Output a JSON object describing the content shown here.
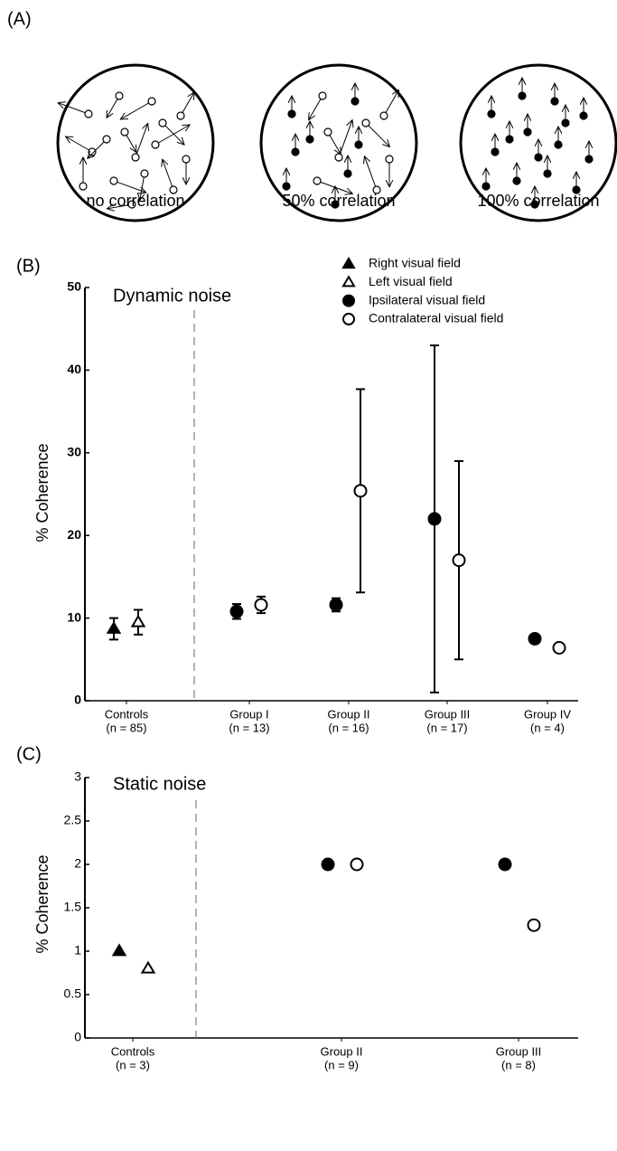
{
  "panel_a": {
    "label": "(A)",
    "captions": [
      "no correlation",
      "50% correlation",
      "100% correlation"
    ]
  },
  "chart_data": [
    {
      "type": "scatter",
      "panel_label": "(B)",
      "title": "Dynamic noise",
      "y_label": "% Coherence",
      "categories": [
        "Controls",
        "Group I",
        "Group II",
        "Group III",
        "Group IV"
      ],
      "category_notes": [
        "(n = 85)",
        "(n = 13)",
        "(n = 16)",
        "(n = 17)",
        "(n = 4)"
      ],
      "ylim": [
        0,
        50
      ],
      "yticks": [
        0,
        10,
        20,
        30,
        40,
        50
      ],
      "legend": "top-right",
      "series": [
        {
          "name": "Right visual field",
          "marker": "triangle",
          "filled": true,
          "color": "#000000",
          "values": [
            8.7,
            null,
            null,
            null,
            null
          ],
          "errors": [
            1.3,
            null,
            null,
            null,
            null
          ]
        },
        {
          "name": "Left visual field",
          "marker": "triangle",
          "filled": false,
          "color": "#000000",
          "values": [
            9.5,
            null,
            null,
            null,
            null
          ],
          "errors": [
            1.5,
            null,
            null,
            null,
            null
          ]
        },
        {
          "name": "Ipsilateral visual field",
          "marker": "circle",
          "filled": true,
          "color": "#000000",
          "values": [
            null,
            10.8,
            11.6,
            22,
            7.5
          ],
          "errors": [
            null,
            0.9,
            0.8,
            21,
            null
          ]
        },
        {
          "name": "Contralateral visual field",
          "marker": "circle",
          "filled": false,
          "color": "#000000",
          "values": [
            null,
            11.6,
            25.4,
            17,
            6.4
          ],
          "errors": [
            null,
            1,
            12.3,
            12,
            null
          ]
        }
      ]
    },
    {
      "type": "scatter",
      "panel_label": "(C)",
      "title": "Static noise",
      "y_label": "% Coherence",
      "categories": [
        "Controls",
        "Group II",
        "Group III"
      ],
      "category_notes": [
        "(n = 3)",
        "(n = 9)",
        "(n = 8)"
      ],
      "ylim": [
        0,
        3
      ],
      "yticks": [
        0,
        0.5,
        1,
        1.5,
        2,
        2.5,
        3
      ],
      "series": [
        {
          "marker": "triangle",
          "filled": true,
          "color": "#000000",
          "values": [
            1,
            null,
            null
          ]
        },
        {
          "marker": "triangle",
          "filled": false,
          "color": "#000000",
          "values": [
            0.8,
            null,
            null
          ]
        },
        {
          "marker": "circle",
          "filled": true,
          "color": "#000000",
          "values": [
            null,
            2,
            2
          ]
        },
        {
          "marker": "circle",
          "filled": false,
          "color": "#000000",
          "values": [
            null,
            2,
            1.3
          ]
        }
      ]
    }
  ]
}
